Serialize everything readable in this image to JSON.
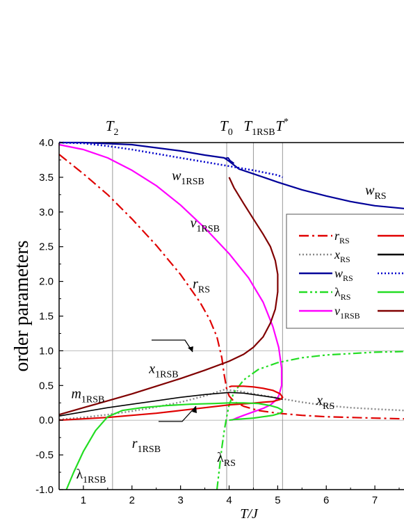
{
  "chart_data": {
    "type": "line",
    "xlabel": "T/J",
    "ylabel": "order parameters",
    "xlim": [
      0.5,
      7.6
    ],
    "ylim": [
      -1.0,
      4.0
    ],
    "xticks": [
      1,
      2,
      3,
      4,
      5,
      6,
      7
    ],
    "yticks": [
      -1.0,
      -0.5,
      0.0,
      0.5,
      1.0,
      1.5,
      2.0,
      2.5,
      3.0,
      3.5,
      4.0
    ],
    "xtick_labels": [
      "1",
      "2",
      "3",
      "4",
      "5",
      "6",
      "7"
    ],
    "ytick_labels": [
      "-1.0",
      "-0.5",
      "0.0",
      "0.5",
      "1.0",
      "1.5",
      "2.0",
      "2.5",
      "3.0",
      "3.5",
      "4.0"
    ],
    "vertical_lines": [
      {
        "name": "T_2",
        "x": 1.6,
        "label": "T",
        "sub": "2"
      },
      {
        "name": "T_0",
        "x": 3.95,
        "label": "T",
        "sub": "0"
      },
      {
        "name": "T_1RSB",
        "x": 4.5,
        "label": "T",
        "sub": "1RSB"
      },
      {
        "name": "T_star",
        "x": 5.1,
        "label": "T",
        "sup": "*"
      }
    ],
    "grid": {
      "horizontal_at": [
        0.0,
        1.0
      ],
      "vertical": "at transition temperatures"
    },
    "legend": {
      "placement": "right",
      "entries": [
        {
          "label": "r",
          "sub": "RS",
          "color": "#e00000",
          "dash": "dashdot"
        },
        {
          "label": "x",
          "sub": "RS",
          "color": "#888888",
          "dash": "dotted"
        },
        {
          "label": "w",
          "sub": "RS",
          "color": "#000099",
          "dash": "solid"
        },
        {
          "label": "λ",
          "sub": "RS",
          "color": "#22dd22",
          "dash": "dashdotdot"
        },
        {
          "label": "v",
          "sub": "1RSB",
          "color": "#ff00ff",
          "dash": "solid"
        }
      ],
      "entries_col2": [
        {
          "color": "#e00000",
          "dash": "solid"
        },
        {
          "color": "#000000",
          "dash": "solid"
        },
        {
          "color": "#0000cc",
          "dash": "dotted"
        },
        {
          "color": "#22dd22",
          "dash": "solid"
        },
        {
          "color": "#800000",
          "dash": "solid"
        }
      ]
    },
    "annotations": [
      {
        "name": "w_1RSB",
        "text": "w",
        "sub": "1RSB",
        "x": 2.82,
        "y": 3.46
      },
      {
        "name": "w_RS",
        "text": "w",
        "sub": "RS",
        "x": 6.8,
        "y": 3.25
      },
      {
        "name": "v_1RSB",
        "text": "v",
        "sub": "1RSB",
        "x": 3.2,
        "y": 2.78
      },
      {
        "name": "r_RS",
        "text": "r",
        "sub": "RS",
        "x": 3.25,
        "y": 1.9
      },
      {
        "name": "x_1RSB",
        "text": "x",
        "sub": "1RSB",
        "x": 2.35,
        "y": 0.68
      },
      {
        "name": "m_1RSB",
        "text": "m",
        "sub": "1RSB",
        "x": 0.75,
        "y": 0.32
      },
      {
        "name": "x_RS",
        "text": "x",
        "sub": "RS",
        "x": 5.8,
        "y": 0.22
      },
      {
        "name": "r_1RSB",
        "text": "r",
        "sub": "1RSB",
        "x": 2.0,
        "y": -0.4
      },
      {
        "name": "lambda_RS",
        "text": "λ",
        "sub": "RS",
        "x": 3.75,
        "y": -0.6
      },
      {
        "name": "lambda_1RSB",
        "text": "λ",
        "sub": "1RSB",
        "x": 0.85,
        "y": -0.84
      }
    ],
    "series": [
      {
        "id": "line4",
        "color": "#000000",
        "dash": "solid",
        "width": 1.5,
        "x": [
          0.5,
          7.6
        ],
        "y": [
          4.0,
          4.0
        ]
      },
      {
        "id": "w_RS",
        "color": "#000099",
        "dash": "solid",
        "width": 2.2,
        "x": [
          0.5,
          1.0,
          2.0,
          3.0,
          3.5,
          3.9,
          4.0,
          4.2,
          4.5,
          5.0,
          5.5,
          6.0,
          6.5,
          7.0,
          7.6
        ],
        "y": [
          4.0,
          4.0,
          3.97,
          3.88,
          3.82,
          3.78,
          3.73,
          3.62,
          3.55,
          3.43,
          3.32,
          3.23,
          3.15,
          3.09,
          3.05
        ]
      },
      {
        "id": "w_RS_hump",
        "color": "#000099",
        "dash": "solid",
        "width": 2.0,
        "x": [
          3.9,
          3.98,
          4.02,
          4.1
        ],
        "y": [
          3.77,
          3.78,
          3.74,
          3.7
        ]
      },
      {
        "id": "w_1RSB_dotted",
        "color": "#0000cc",
        "dash": "dotted",
        "width": 2.6,
        "x": [
          0.5,
          1.0,
          1.5,
          2.0,
          2.5,
          3.0,
          3.5,
          4.0,
          4.5,
          5.0,
          5.1
        ],
        "y": [
          4.0,
          3.99,
          3.95,
          3.9,
          3.84,
          3.78,
          3.72,
          3.66,
          3.6,
          3.53,
          3.5
        ]
      },
      {
        "id": "v_1RSB",
        "color": "#ff00ff",
        "dash": "solid",
        "width": 2.2,
        "x": [
          0.5,
          1.0,
          1.5,
          2.0,
          2.5,
          3.0,
          3.5,
          4.0,
          4.4,
          4.7,
          4.9,
          5.02,
          5.08,
          5.08,
          5.02,
          4.95,
          4.85,
          4.7,
          4.5,
          4.3,
          4.15,
          4.05
        ],
        "y": [
          3.97,
          3.9,
          3.78,
          3.6,
          3.38,
          3.1,
          2.77,
          2.4,
          2.05,
          1.7,
          1.35,
          1.05,
          0.75,
          0.5,
          0.35,
          0.28,
          0.22,
          0.17,
          0.12,
          0.07,
          0.03,
          0.0
        ]
      },
      {
        "id": "r_RS",
        "color": "#e00000",
        "dash": "dashdot",
        "width": 2.2,
        "x": [
          0.5,
          1.0,
          1.5,
          2.0,
          2.5,
          3.0,
          3.4,
          3.6,
          3.75,
          3.85,
          3.9,
          3.95,
          4.0,
          4.1,
          4.3,
          4.6,
          5.0,
          5.5,
          6.0,
          6.5,
          7.0,
          7.6
        ],
        "y": [
          3.83,
          3.55,
          3.25,
          2.9,
          2.52,
          2.1,
          1.7,
          1.45,
          1.2,
          0.9,
          0.65,
          0.45,
          0.35,
          0.27,
          0.2,
          0.14,
          0.1,
          0.07,
          0.05,
          0.04,
          0.03,
          0.02
        ]
      },
      {
        "id": "x_RS",
        "color": "#888888",
        "dash": "dotted",
        "width": 2.4,
        "x": [
          0.5,
          1.0,
          1.5,
          2.0,
          2.5,
          3.0,
          3.5,
          3.9,
          4.2,
          4.5,
          5.0,
          5.5,
          6.0,
          6.5,
          7.0,
          7.6
        ],
        "y": [
          0.01,
          0.04,
          0.08,
          0.13,
          0.19,
          0.26,
          0.35,
          0.44,
          0.42,
          0.38,
          0.32,
          0.26,
          0.21,
          0.18,
          0.16,
          0.14
        ]
      },
      {
        "id": "lambda_RS",
        "color": "#22dd22",
        "dash": "dashdotdot",
        "width": 2.2,
        "x": [
          3.75,
          3.8,
          3.85,
          3.9,
          3.95,
          4.0,
          4.1,
          4.3,
          4.6,
          5.0,
          5.5,
          6.0,
          6.5,
          7.0,
          7.6
        ],
        "y": [
          -1.0,
          -0.7,
          -0.4,
          -0.15,
          0.05,
          0.22,
          0.4,
          0.58,
          0.73,
          0.83,
          0.9,
          0.94,
          0.96,
          0.98,
          0.99
        ]
      },
      {
        "id": "m_1RSB",
        "color": "#800000",
        "dash": "solid",
        "width": 2.2,
        "x": [
          0.5,
          1.0,
          1.5,
          2.0,
          2.5,
          3.0,
          3.5,
          4.0,
          4.3,
          4.5,
          4.7,
          4.85,
          4.95,
          5.0,
          5.0,
          4.95,
          4.85,
          4.7,
          4.5,
          4.3,
          4.1,
          4.0
        ],
        "y": [
          0.08,
          0.18,
          0.28,
          0.38,
          0.49,
          0.6,
          0.72,
          0.85,
          0.95,
          1.05,
          1.2,
          1.4,
          1.6,
          1.85,
          2.1,
          2.3,
          2.5,
          2.68,
          2.9,
          3.12,
          3.35,
          3.5
        ]
      },
      {
        "id": "x_1RSB",
        "color": "#000000",
        "dash": "solid",
        "width": 1.6,
        "x": [
          0.5,
          1.0,
          1.5,
          2.0,
          2.5,
          3.0,
          3.5,
          4.0,
          4.3,
          4.6,
          4.9,
          5.05,
          5.1
        ],
        "y": [
          0.06,
          0.12,
          0.18,
          0.23,
          0.28,
          0.33,
          0.37,
          0.4,
          0.39,
          0.36,
          0.33,
          0.31,
          0.3
        ]
      },
      {
        "id": "r_1RSB",
        "color": "#e00000",
        "dash": "solid",
        "width": 2.2,
        "x": [
          0.5,
          1.0,
          1.5,
          2.0,
          2.5,
          3.0,
          3.5,
          4.0,
          4.4,
          4.7,
          4.9,
          5.05,
          5.1,
          5.05,
          4.9,
          4.7,
          4.5,
          4.3,
          4.15,
          4.05,
          4.0
        ],
        "y": [
          0.0,
          0.02,
          0.04,
          0.07,
          0.1,
          0.14,
          0.18,
          0.22,
          0.24,
          0.26,
          0.27,
          0.3,
          0.33,
          0.38,
          0.43,
          0.46,
          0.48,
          0.49,
          0.49,
          0.49,
          0.48
        ]
      },
      {
        "id": "lambda_1RSB",
        "color": "#22dd22",
        "dash": "solid",
        "width": 2.2,
        "x": [
          0.65,
          0.8,
          1.0,
          1.25,
          1.5,
          1.8,
          2.2,
          2.7,
          3.2,
          3.7,
          4.0,
          4.3,
          4.6,
          4.85,
          5.0,
          5.08,
          5.1,
          5.05,
          4.9,
          4.7,
          4.5,
          4.3,
          4.1,
          4.0
        ],
        "y": [
          -1.0,
          -0.75,
          -0.45,
          -0.15,
          0.05,
          0.14,
          0.18,
          0.21,
          0.23,
          0.24,
          0.25,
          0.25,
          0.24,
          0.21,
          0.18,
          0.15,
          0.13,
          0.1,
          0.07,
          0.05,
          0.03,
          0.02,
          0.01,
          0.0
        ]
      }
    ]
  }
}
